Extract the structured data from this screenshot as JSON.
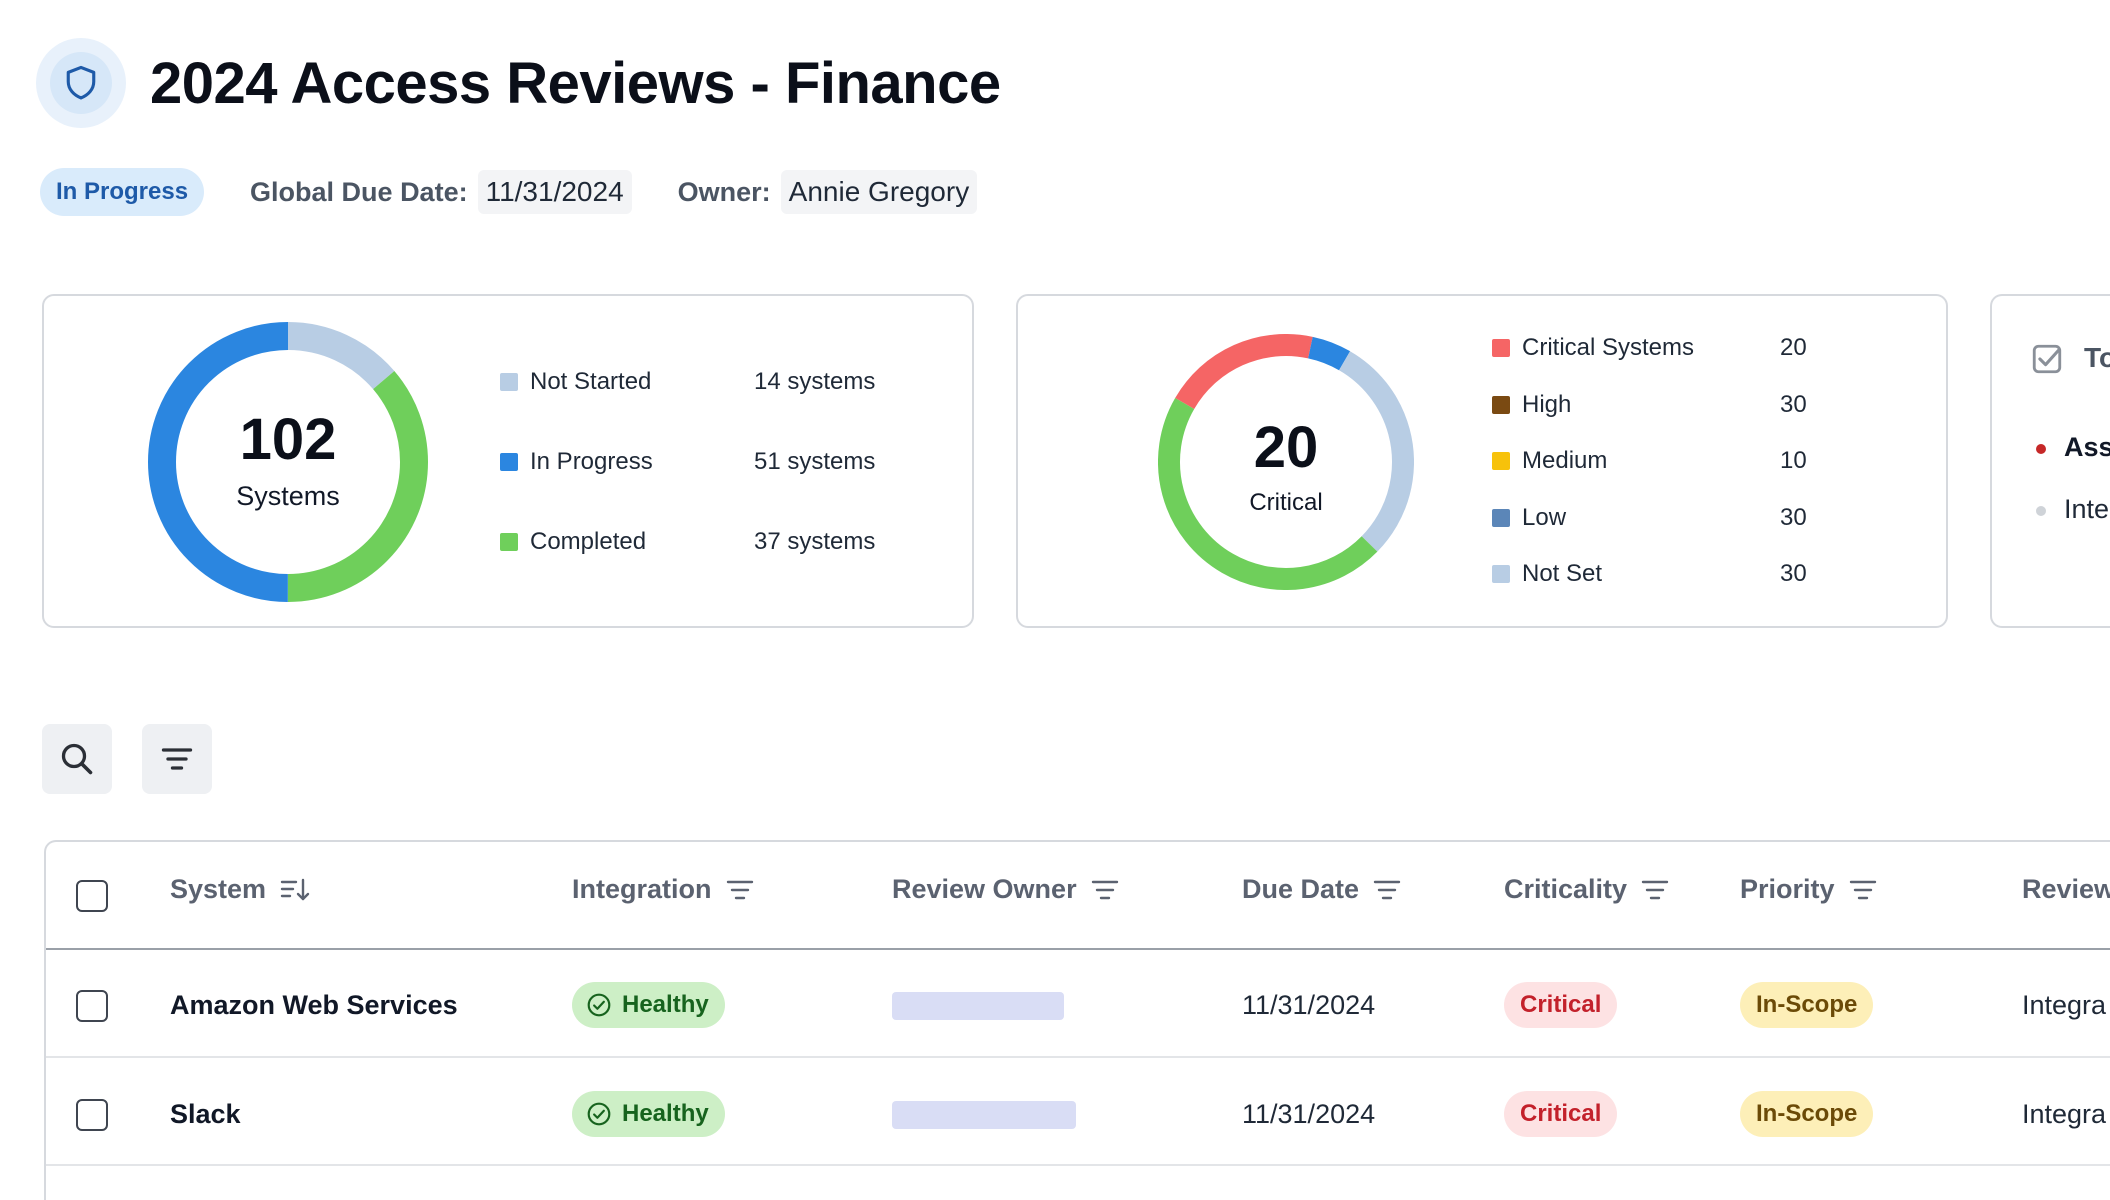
{
  "header": {
    "title": "2024 Access Reviews - Finance",
    "status": "In Progress",
    "due_label": "Global Due Date:",
    "due_value": "11/31/2024",
    "owner_label": "Owner:",
    "owner_value": "Annie Gregory"
  },
  "systems_card": {
    "total": "102",
    "total_label": "Systems",
    "legend": [
      {
        "label": "Not Started",
        "value": "14 systems",
        "color": "#b8cde4",
        "count": 14
      },
      {
        "label": "In Progress",
        "value": "51 systems",
        "color": "#2b86e0",
        "count": 51
      },
      {
        "label": "Completed",
        "value": "37 systems",
        "color": "#6fcf5b",
        "count": 37
      }
    ]
  },
  "criticality_card": {
    "total": "20",
    "total_label": "Critical",
    "legend": [
      {
        "label": "Critical Systems",
        "value": "20",
        "color": "#f56565"
      },
      {
        "label": "High",
        "value": "30",
        "color": "#7a4a12"
      },
      {
        "label": "Medium",
        "value": "10",
        "color": "#f7c20b"
      },
      {
        "label": "Low",
        "value": "30",
        "color": "#5b86b8"
      },
      {
        "label": "Not Set",
        "value": "30",
        "color": "#b8cde4"
      }
    ],
    "ring_segments": [
      {
        "color": "#f56565",
        "fraction": 0.2
      },
      {
        "color": "#2b86e0",
        "fraction": 0.05
      },
      {
        "color": "#b8cde4",
        "fraction": 0.29
      },
      {
        "color": "#6fcf5b",
        "fraction": 0.46
      }
    ]
  },
  "tasks_card": {
    "title": "To",
    "items": [
      {
        "label": "Assi",
        "bullet_color": "#c62828"
      },
      {
        "label": "Inte",
        "bullet_color": "#cfd3d8"
      }
    ]
  },
  "table": {
    "columns": [
      "System",
      "Integration",
      "Review Owner",
      "Due Date",
      "Criticality",
      "Priority",
      "Review"
    ],
    "rows": [
      {
        "system": "Amazon Web Services",
        "integration": "Healthy",
        "due": "11/31/2024",
        "criticality": "Critical",
        "priority": "In-Scope",
        "review": "Integra",
        "owner_bar": 0.62
      },
      {
        "system": "Slack",
        "integration": "Healthy",
        "due": "11/31/2024",
        "criticality": "Critical",
        "priority": "In-Scope",
        "review": "Integra",
        "owner_bar": 0.66
      }
    ]
  },
  "icons": {
    "header": "shield-icon",
    "search": "search-icon",
    "filter": "filter-icon",
    "tasks": "checkbox-checked-icon",
    "sort": "sort-icon",
    "healthy": "check-circle-icon"
  }
}
